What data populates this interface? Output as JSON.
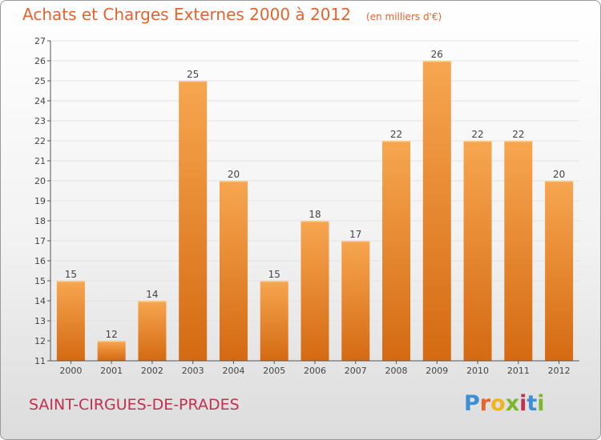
{
  "colors": {
    "title": "#e8622c",
    "commune": "#c0304f",
    "bar_light": "#f7a650",
    "bar_dark": "#d46a12",
    "grid": "#e4e4e4",
    "axis": "#555555",
    "logo": [
      "#3a8fd6",
      "#e8622c",
      "#f1b51c",
      "#7ab829",
      "#c0304f",
      "#3a8fd6",
      "#7ab829"
    ]
  },
  "chart_data": {
    "type": "bar",
    "title": "Achats et Charges Externes 2000 à 2012",
    "subtitle": "(en milliers d'€)",
    "xlabel": "",
    "ylabel": "",
    "categories": [
      "2000",
      "2001",
      "2002",
      "2003",
      "2004",
      "2005",
      "2006",
      "2007",
      "2008",
      "2009",
      "2010",
      "2011",
      "2012"
    ],
    "values": [
      15,
      12,
      14,
      25,
      20,
      15,
      18,
      17,
      22,
      26,
      22,
      22,
      20
    ],
    "ylim": [
      11,
      27
    ],
    "yticks": [
      "11",
      "12",
      "13",
      "14",
      "15",
      "16",
      "17",
      "18",
      "19",
      "20",
      "21",
      "22",
      "23",
      "24",
      "25",
      "26",
      "27"
    ],
    "grid": true,
    "data_labels": true
  },
  "footer": {
    "commune": "SAINT-CIRGUES-DE-PRADES",
    "logo_letters": [
      "P",
      "r",
      "o",
      "x",
      "i",
      "t",
      "i"
    ]
  }
}
